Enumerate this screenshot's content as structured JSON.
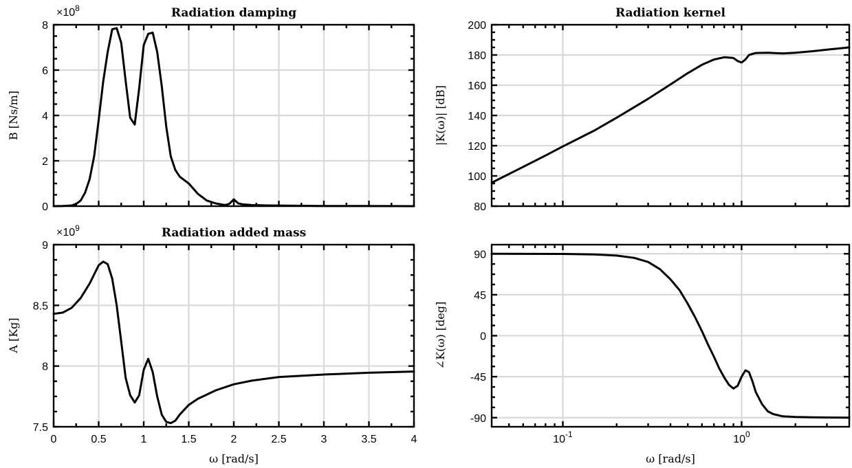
{
  "chart_data": [
    {
      "id": "damping",
      "type": "line",
      "title": "Radiation damping",
      "ylabel": "B [Ns/m]",
      "xlabel": "",
      "x_scale": "linear",
      "xlim": [
        0,
        4
      ],
      "ylim": [
        0,
        8
      ],
      "y_multiplier": "×10^8",
      "xticks": [
        0,
        0.5,
        1,
        1.5,
        2,
        2.5,
        3,
        3.5,
        4
      ],
      "xtick_labels": [
        "",
        "",
        "",
        "",
        "",
        "",
        "",
        "",
        ""
      ],
      "yticks": [
        0,
        2,
        4,
        6,
        8
      ],
      "ytick_labels": [
        "0",
        "2",
        "4",
        "6",
        "8"
      ],
      "grid": true,
      "series": [
        {
          "x": [
            0,
            0.1,
            0.2,
            0.25,
            0.3,
            0.35,
            0.4,
            0.45,
            0.5,
            0.55,
            0.6,
            0.65,
            0.7,
            0.75,
            0.8,
            0.85,
            0.9,
            0.95,
            1.0,
            1.05,
            1.1,
            1.15,
            1.2,
            1.25,
            1.3,
            1.35,
            1.4,
            1.45,
            1.5,
            1.6,
            1.7,
            1.8,
            1.9,
            1.95,
            2.0,
            2.05,
            2.1,
            2.2,
            2.4,
            2.6,
            3.0,
            3.5,
            4.0
          ],
          "values": [
            0,
            0.005,
            0.03,
            0.1,
            0.25,
            0.6,
            1.2,
            2.2,
            3.8,
            5.5,
            6.8,
            7.8,
            7.85,
            7.2,
            5.5,
            3.9,
            3.6,
            5.2,
            7.1,
            7.6,
            7.65,
            6.8,
            5.3,
            3.5,
            2.2,
            1.6,
            1.3,
            1.15,
            1.0,
            0.55,
            0.25,
            0.12,
            0.05,
            0.1,
            0.3,
            0.12,
            0.08,
            0.05,
            0.03,
            0.02,
            0.01,
            0.005,
            0
          ]
        }
      ]
    },
    {
      "id": "kernel_mag",
      "type": "line",
      "title": "Radiation kernel",
      "ylabel": "|K(ω)| [dB]",
      "xlabel": "",
      "x_scale": "log",
      "xlim": [
        0.04,
        4
      ],
      "ylim": [
        80,
        200
      ],
      "xticks": [
        0.1,
        1
      ],
      "xtick_labels": [
        "",
        ""
      ],
      "yticks": [
        80,
        100,
        120,
        140,
        160,
        180,
        200
      ],
      "ytick_labels": [
        "80",
        "100",
        "120",
        "140",
        "160",
        "180",
        "200"
      ],
      "grid": true,
      "series": [
        {
          "x": [
            0.04,
            0.06,
            0.08,
            0.1,
            0.15,
            0.2,
            0.3,
            0.4,
            0.5,
            0.6,
            0.7,
            0.8,
            0.9,
            0.95,
            1.0,
            1.05,
            1.1,
            1.2,
            1.4,
            1.7,
            2.0,
            2.5,
            3.0,
            4.0
          ],
          "values": [
            95.5,
            106,
            113.5,
            119.5,
            130,
            138.5,
            151,
            160.5,
            168,
            173.5,
            177,
            178.5,
            178,
            176,
            175,
            177,
            180,
            181.3,
            181.5,
            181,
            181.5,
            182.5,
            183.5,
            185
          ]
        }
      ]
    },
    {
      "id": "added_mass",
      "type": "line",
      "title": "Radiation added mass",
      "ylabel": "A [Kg]",
      "xlabel": "ω [rad/s]",
      "x_scale": "linear",
      "xlim": [
        0,
        4
      ],
      "ylim": [
        7.5,
        9
      ],
      "y_multiplier": "×10^9",
      "xticks": [
        0,
        0.5,
        1,
        1.5,
        2,
        2.5,
        3,
        3.5,
        4
      ],
      "xtick_labels": [
        "0",
        "0.5",
        "1",
        "1.5",
        "2",
        "2.5",
        "3",
        "3.5",
        "4"
      ],
      "yticks": [
        7.5,
        8,
        8.5,
        9
      ],
      "ytick_labels": [
        "7.5",
        "8",
        "8.5",
        "9"
      ],
      "grid": true,
      "series": [
        {
          "x": [
            0,
            0.1,
            0.2,
            0.3,
            0.4,
            0.5,
            0.55,
            0.6,
            0.65,
            0.7,
            0.75,
            0.8,
            0.85,
            0.9,
            0.95,
            1.0,
            1.05,
            1.1,
            1.15,
            1.2,
            1.25,
            1.3,
            1.35,
            1.4,
            1.5,
            1.6,
            1.8,
            2.0,
            2.2,
            2.5,
            3.0,
            3.5,
            4.0
          ],
          "values": [
            8.43,
            8.44,
            8.48,
            8.56,
            8.68,
            8.83,
            8.86,
            8.84,
            8.72,
            8.5,
            8.2,
            7.9,
            7.76,
            7.7,
            7.76,
            7.97,
            8.06,
            7.95,
            7.75,
            7.6,
            7.54,
            7.53,
            7.55,
            7.6,
            7.68,
            7.73,
            7.8,
            7.85,
            7.88,
            7.91,
            7.93,
            7.945,
            7.955
          ]
        }
      ]
    },
    {
      "id": "kernel_phase",
      "type": "line",
      "title": "",
      "ylabel": "∠K(ω) [deg]",
      "xlabel": "ω [rad/s]",
      "x_scale": "log",
      "xlim": [
        0.04,
        4
      ],
      "ylim": [
        -100,
        100
      ],
      "xticks": [
        0.1,
        1
      ],
      "xtick_labels": [
        "10",
        "10"
      ],
      "xtick_exponents": [
        "-1",
        "0"
      ],
      "yticks": [
        -90,
        -45,
        0,
        45,
        90
      ],
      "ytick_labels": [
        "-90",
        "-45",
        "0",
        "45",
        "90"
      ],
      "grid": true,
      "series": [
        {
          "x": [
            0.04,
            0.1,
            0.15,
            0.2,
            0.25,
            0.3,
            0.35,
            0.4,
            0.45,
            0.5,
            0.55,
            0.6,
            0.65,
            0.7,
            0.75,
            0.8,
            0.85,
            0.9,
            0.95,
            1.0,
            1.05,
            1.1,
            1.15,
            1.2,
            1.3,
            1.4,
            1.5,
            1.7,
            2.0,
            2.5,
            3.0,
            4.0
          ],
          "values": [
            90,
            89.8,
            89.3,
            88,
            85.5,
            81,
            73,
            62,
            50,
            35,
            20,
            5,
            -10,
            -23,
            -36,
            -46,
            -54,
            -58,
            -55,
            -45,
            -38,
            -40,
            -50,
            -62,
            -75,
            -83,
            -86,
            -88.5,
            -89.2,
            -89.6,
            -89.8,
            -90
          ]
        }
      ]
    }
  ]
}
